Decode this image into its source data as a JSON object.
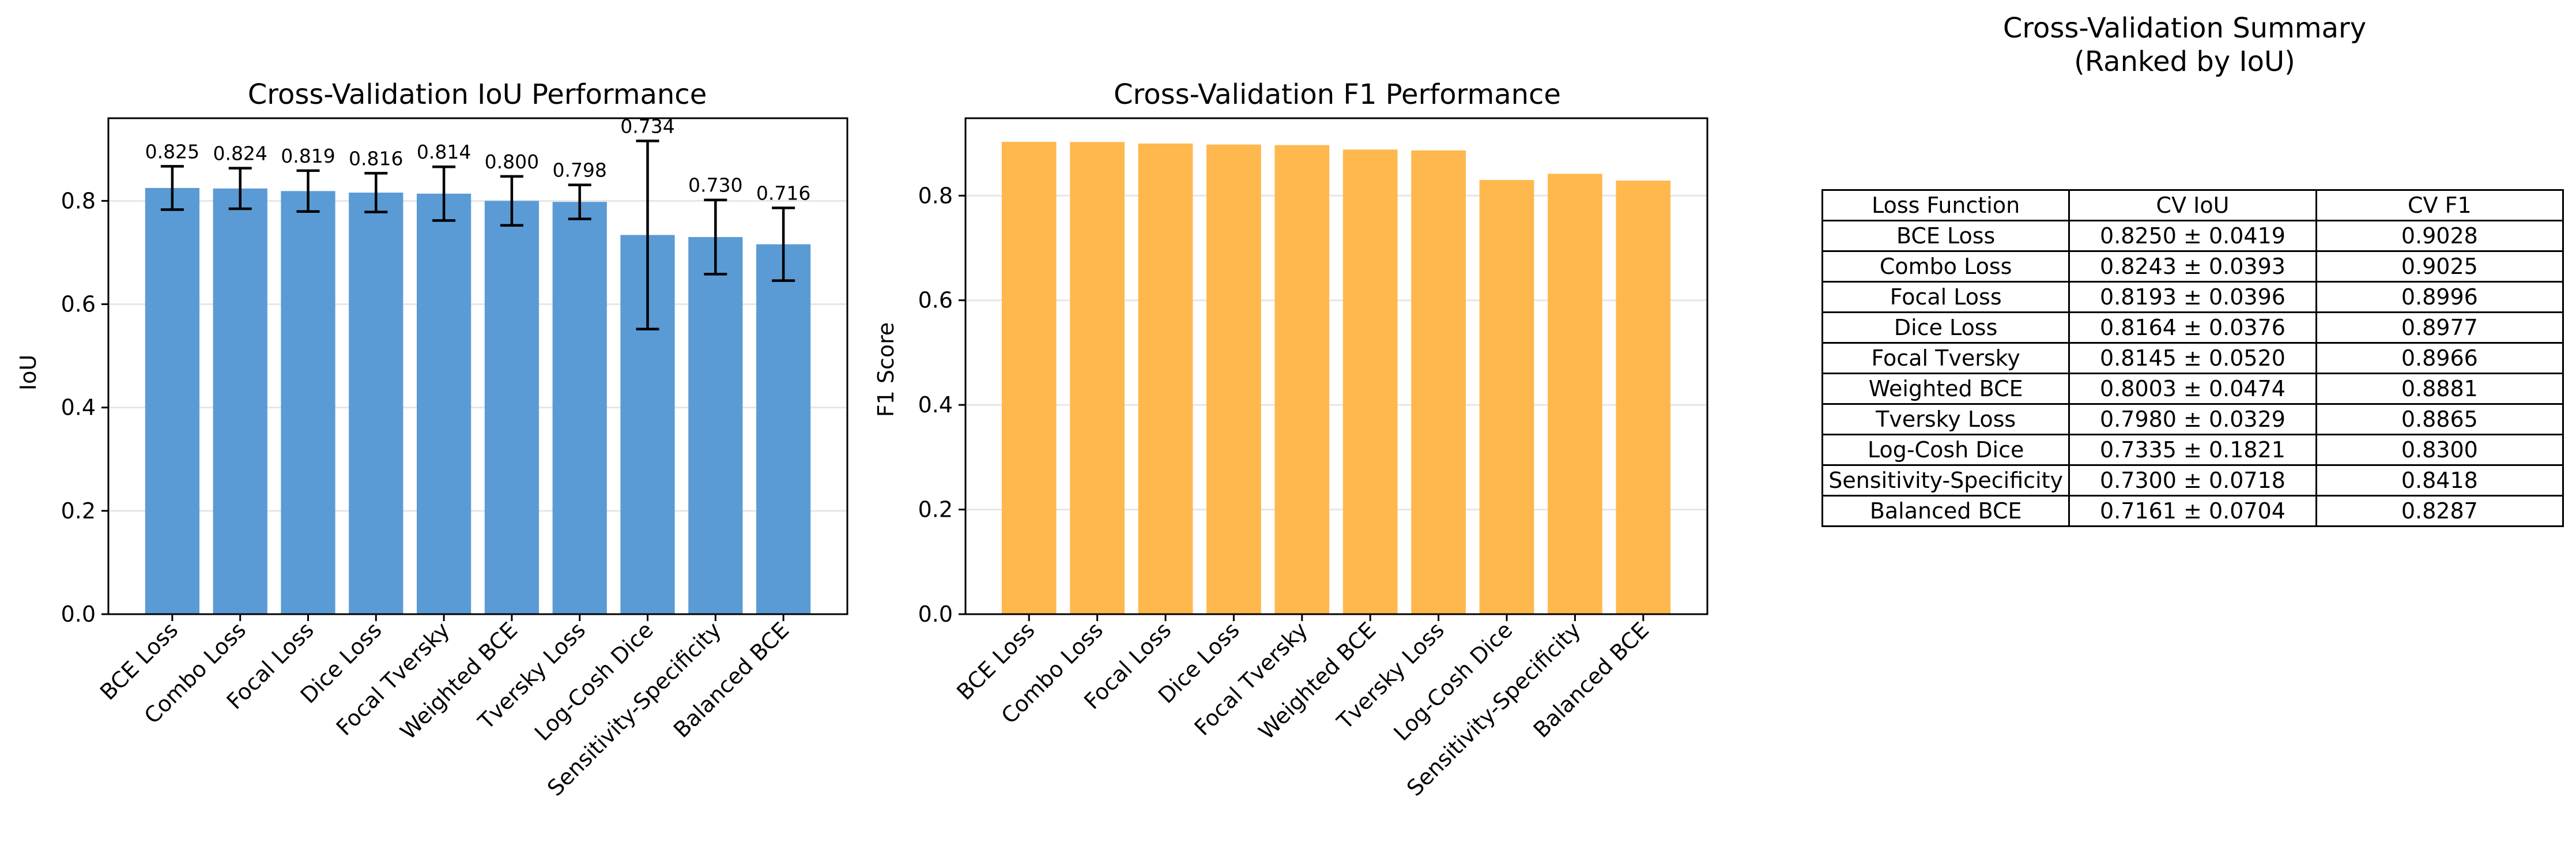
{
  "iou_chart": {
    "title": "Cross-Validation IoU Performance",
    "ylabel": "IoU",
    "color": "#5b9bd5",
    "error_color": "#000000"
  },
  "f1_chart": {
    "title": "Cross-Validation F1 Performance",
    "ylabel": "F1 Score",
    "color": "#ffb84d"
  },
  "summary": {
    "title_line1": "Cross-Validation Summary",
    "title_line2": "(Ranked by IoU)",
    "headers": [
      "Loss Function",
      "CV IoU",
      "CV F1"
    ],
    "rows": [
      [
        "BCE Loss",
        "0.8250 ± 0.0419",
        "0.9028"
      ],
      [
        "Combo Loss",
        "0.8243 ± 0.0393",
        "0.9025"
      ],
      [
        "Focal Loss",
        "0.8193 ± 0.0396",
        "0.8996"
      ],
      [
        "Dice Loss",
        "0.8164 ± 0.0376",
        "0.8977"
      ],
      [
        "Focal Tversky",
        "0.8145 ± 0.0520",
        "0.8966"
      ],
      [
        "Weighted BCE",
        "0.8003 ± 0.0474",
        "0.8881"
      ],
      [
        "Tversky Loss",
        "0.7980 ± 0.0329",
        "0.8865"
      ],
      [
        "Log-Cosh Dice",
        "0.7335 ± 0.1821",
        "0.8300"
      ],
      [
        "Sensitivity-Specificity",
        "0.7300 ± 0.0718",
        "0.8418"
      ],
      [
        "Balanced BCE",
        "0.7161 ± 0.0704",
        "0.8287"
      ]
    ]
  },
  "chart_data": [
    {
      "type": "bar",
      "title": "Cross-Validation IoU Performance",
      "xlabel": "",
      "ylabel": "IoU",
      "categories": [
        "BCE Loss",
        "Combo Loss",
        "Focal Loss",
        "Dice Loss",
        "Focal Tversky",
        "Weighted BCE",
        "Tversky Loss",
        "Log-Cosh Dice",
        "Sensitivity-Specificity",
        "Balanced BCE"
      ],
      "values": [
        0.825,
        0.824,
        0.819,
        0.816,
        0.814,
        0.8,
        0.798,
        0.734,
        0.73,
        0.716
      ],
      "errors": [
        0.0419,
        0.0393,
        0.0396,
        0.0376,
        0.052,
        0.0474,
        0.0329,
        0.1821,
        0.0718,
        0.0704
      ],
      "data_labels": [
        "0.825",
        "0.824",
        "0.819",
        "0.816",
        "0.814",
        "0.800",
        "0.798",
        "0.734",
        "0.730",
        "0.716"
      ],
      "ylim": [
        0,
        0.96
      ],
      "yticks": [
        0.0,
        0.2,
        0.4,
        0.6,
        0.8
      ],
      "ytick_labels": [
        "0.0",
        "0.2",
        "0.4",
        "0.6",
        "0.8"
      ],
      "grid": "horizontal"
    },
    {
      "type": "bar",
      "title": "Cross-Validation F1 Performance",
      "xlabel": "",
      "ylabel": "F1 Score",
      "categories": [
        "BCE Loss",
        "Combo Loss",
        "Focal Loss",
        "Dice Loss",
        "Focal Tversky",
        "Weighted BCE",
        "Tversky Loss",
        "Log-Cosh Dice",
        "Sensitivity-Specificity",
        "Balanced BCE"
      ],
      "values": [
        0.9028,
        0.9025,
        0.8996,
        0.8977,
        0.8966,
        0.8881,
        0.8865,
        0.83,
        0.8418,
        0.8287
      ],
      "ylim": [
        0,
        0.948
      ],
      "yticks": [
        0.0,
        0.2,
        0.4,
        0.6,
        0.8
      ],
      "ytick_labels": [
        "0.0",
        "0.2",
        "0.4",
        "0.6",
        "0.8"
      ],
      "grid": "horizontal"
    }
  ]
}
